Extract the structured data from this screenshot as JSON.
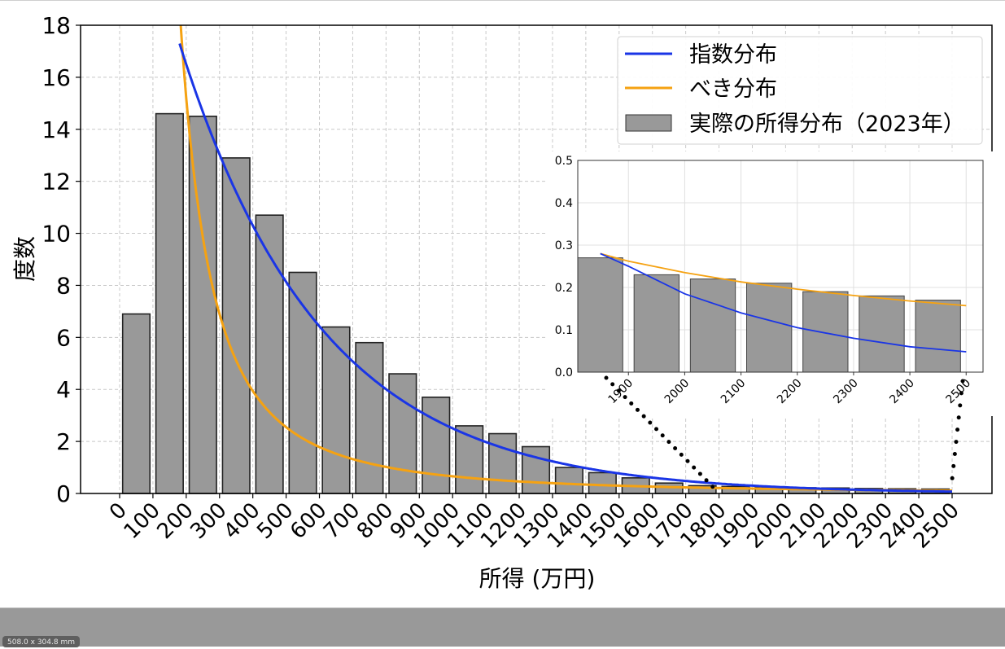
{
  "chart_data": {
    "type": "bar",
    "title": "",
    "xlabel": "所得 (万円)",
    "ylabel": "度数",
    "ylim": [
      0,
      18
    ],
    "xlim": [
      -120,
      2620
    ],
    "yticks": [
      0,
      2,
      4,
      6,
      8,
      10,
      12,
      14,
      16,
      18
    ],
    "xticks": [
      0,
      100,
      200,
      300,
      400,
      500,
      600,
      700,
      800,
      900,
      1000,
      1100,
      1200,
      1300,
      1400,
      1500,
      1600,
      1700,
      1800,
      1900,
      2000,
      2100,
      2200,
      2300,
      2400,
      2500
    ],
    "grid": true,
    "legend_position": "upper right",
    "legend": [
      {
        "label": "指数分布",
        "kind": "line",
        "color": "#1a35e6"
      },
      {
        "label": "べき分布",
        "kind": "line",
        "color": "#f5a212"
      },
      {
        "label": "実際の所得分布（2023年）",
        "kind": "bar",
        "color": "#999999"
      }
    ],
    "bar_series": {
      "name": "実際の所得分布（2023年）",
      "bin_start": [
        0,
        100,
        200,
        300,
        400,
        500,
        600,
        700,
        800,
        900,
        1000,
        1100,
        1200,
        1300,
        1400,
        1500,
        1600,
        1700,
        1800,
        1900,
        2000,
        2100,
        2200,
        2300,
        2400
      ],
      "values": [
        6.9,
        14.6,
        14.5,
        12.9,
        10.7,
        8.5,
        6.4,
        5.8,
        4.6,
        3.7,
        2.6,
        2.3,
        1.8,
        1.0,
        0.8,
        0.6,
        0.4,
        0.3,
        0.27,
        0.23,
        0.22,
        0.21,
        0.19,
        0.18,
        0.17
      ],
      "color": "#999999",
      "edgecolor": "#222222"
    },
    "line_series": [
      {
        "name": "指数分布",
        "color": "#1a35e6",
        "x_range": [
          180,
          2500
        ],
        "model": "exponential",
        "y_at_200": 16.5,
        "decay_per_100": 0.79
      },
      {
        "name": "べき分布",
        "color": "#f5a212",
        "x_range": [
          170,
          2500
        ],
        "model": "power",
        "y_at_300": 6.9
      }
    ],
    "inset": {
      "xlim": [
        1810,
        2530
      ],
      "ylim": [
        0,
        0.5
      ],
      "yticks": [
        0.0,
        0.1,
        0.2,
        0.3,
        0.4,
        0.5
      ],
      "xticks": [
        1900,
        2000,
        2100,
        2200,
        2300,
        2400,
        2500
      ],
      "bin_start": [
        1800,
        1900,
        2000,
        2100,
        2200,
        2300,
        2400
      ],
      "values": [
        0.27,
        0.23,
        0.22,
        0.21,
        0.19,
        0.18,
        0.17
      ],
      "exp_curve": {
        "x": [
          1850,
          1900,
          2000,
          2100,
          2200,
          2300,
          2400,
          2500
        ],
        "y": [
          0.28,
          0.25,
          0.185,
          0.14,
          0.105,
          0.08,
          0.06,
          0.048
        ]
      },
      "pow_curve": {
        "x": [
          1850,
          1900,
          2000,
          2100,
          2200,
          2300,
          2400,
          2500
        ],
        "y": [
          0.28,
          0.262,
          0.235,
          0.213,
          0.196,
          0.181,
          0.168,
          0.157
        ]
      }
    }
  },
  "status": {
    "page_size": "508.0 x 304.8 mm"
  }
}
